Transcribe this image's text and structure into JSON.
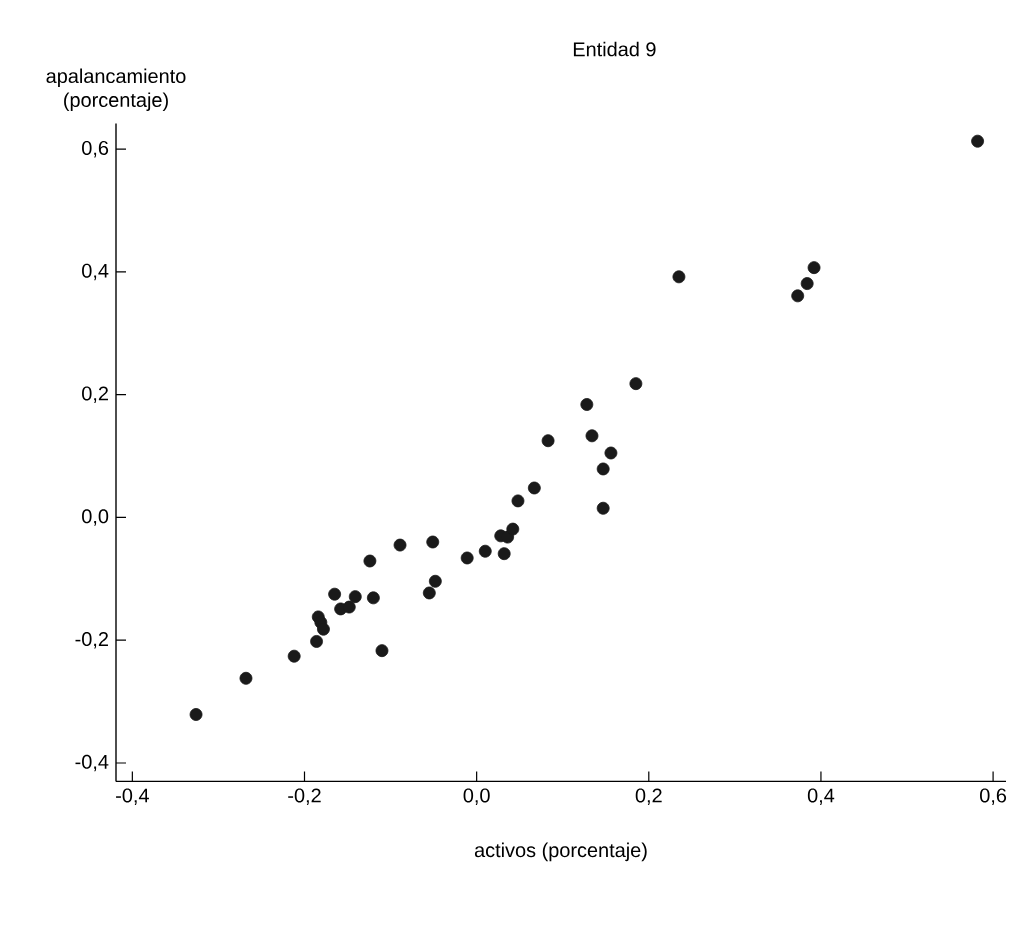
{
  "chart_data": {
    "type": "scatter",
    "title": "Entidad 9",
    "xlabel": "activos (porcentaje)",
    "ylabel": "apalancamiento (porcentaje)",
    "x": [
      -0.326,
      -0.268,
      -0.212,
      -0.186,
      -0.184,
      -0.181,
      -0.178,
      -0.165,
      -0.158,
      -0.148,
      -0.141,
      -0.124,
      -0.12,
      -0.11,
      -0.089,
      -0.051,
      -0.055,
      -0.048,
      -0.011,
      0.01,
      0.028,
      0.036,
      0.032,
      0.042,
      0.048,
      0.067,
      0.083,
      0.128,
      0.134,
      0.156,
      0.147,
      0.147,
      0.185,
      0.235,
      0.373,
      0.384,
      0.392,
      0.582
    ],
    "series": [
      {
        "color": "#1a1a1a",
        "values": [
          -0.321,
          -0.262,
          -0.226,
          -0.202,
          -0.162,
          -0.171,
          -0.182,
          -0.125,
          -0.149,
          -0.146,
          -0.129,
          -0.071,
          -0.131,
          -0.217,
          -0.045,
          -0.04,
          -0.123,
          -0.104,
          -0.066,
          -0.055,
          -0.03,
          -0.032,
          -0.059,
          -0.019,
          0.027,
          0.048,
          0.125,
          0.184,
          0.133,
          0.105,
          0.079,
          0.015,
          0.218,
          0.392,
          0.361,
          0.381,
          0.407,
          0.613
        ]
      }
    ],
    "grid": false,
    "xlim": [
      -0.419,
      0.615
    ],
    "ylim": [
      -0.43,
      0.642
    ],
    "xticks": [
      {
        "value": -0.4,
        "label": "-0,4"
      },
      {
        "value": -0.2,
        "label": "-0,2"
      },
      {
        "value": 0.0,
        "label": "0,0"
      },
      {
        "value": 0.2,
        "label": "0,2"
      },
      {
        "value": 0.4,
        "label": "0,4"
      },
      {
        "value": 0.6,
        "label": "0,6"
      }
    ],
    "yticks": [
      {
        "value": -0.4,
        "label": "-0,4"
      },
      {
        "value": -0.2,
        "label": "-0,2"
      },
      {
        "value": 0.0,
        "label": "0,0"
      },
      {
        "value": 0.2,
        "label": "0,2"
      },
      {
        "value": 0.4,
        "label": "0,4"
      },
      {
        "value": 0.6,
        "label": "0,6"
      }
    ]
  }
}
